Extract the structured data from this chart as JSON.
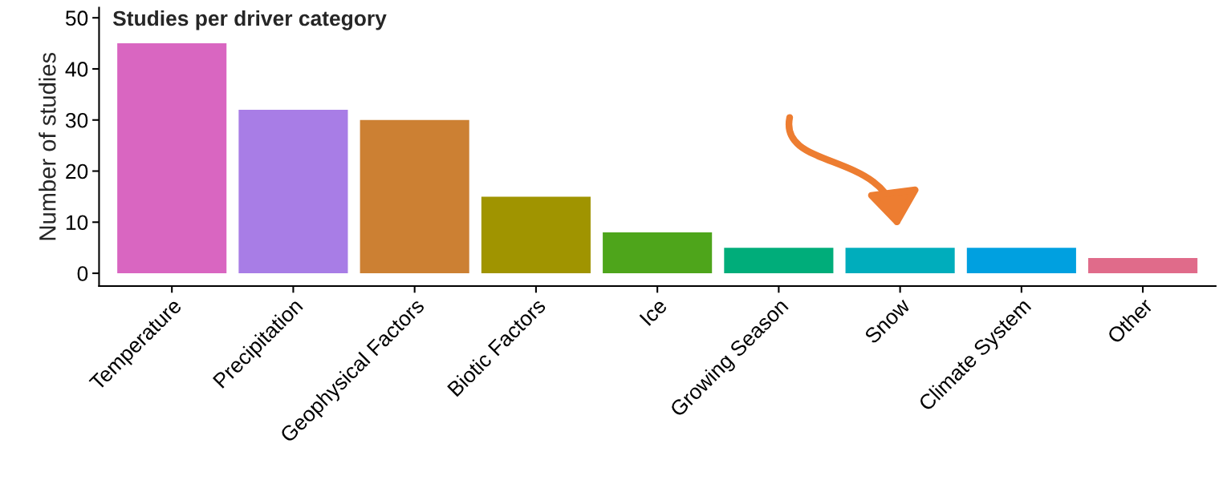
{
  "chart_data": {
    "type": "bar",
    "title": "Studies per driver category",
    "ylabel": "Number of studies",
    "categories": [
      "Temperature",
      "Precipitation",
      "Geophysical Factors",
      "Biotic Factors",
      "Ice",
      "Growing Season",
      "Snow",
      "Climate System",
      "Other"
    ],
    "values": [
      45,
      32,
      30,
      15,
      8,
      5,
      5,
      5,
      3
    ],
    "colors": [
      "#d966c1",
      "#a87de6",
      "#cc8033",
      "#a09400",
      "#4ea51b",
      "#00ad7a",
      "#00adbc",
      "#00a0e0",
      "#e06b8a"
    ],
    "ylim": [
      -2.5,
      52
    ],
    "yticks": [
      0,
      10,
      20,
      30,
      40,
      50
    ],
    "grid": false,
    "legend": false
  }
}
